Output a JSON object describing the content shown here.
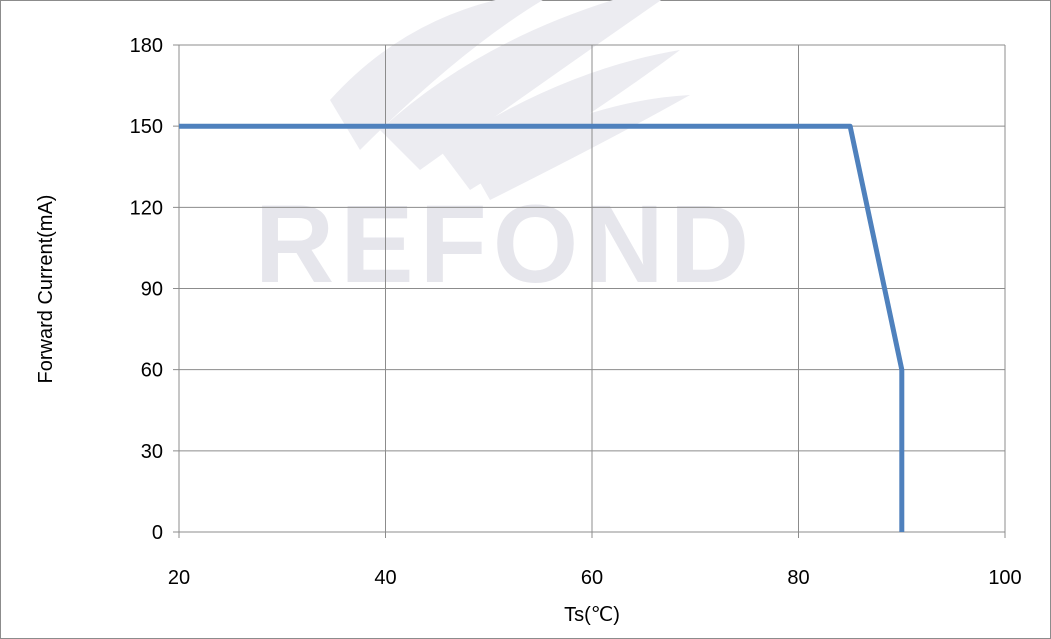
{
  "chart_data": {
    "type": "line",
    "title": "",
    "xlabel": "Ts(℃)",
    "ylabel": "Forward Current(mA)",
    "xlim": [
      20,
      100
    ],
    "ylim": [
      0,
      180
    ],
    "x_ticks": [
      "20",
      "40",
      "60",
      "80",
      "100"
    ],
    "y_ticks": [
      "0",
      "30",
      "60",
      "90",
      "120",
      "150",
      "180"
    ],
    "grid": true,
    "legend": "none",
    "series": [
      {
        "color": "#4f81bd",
        "points": [
          [
            20,
            150
          ],
          [
            85,
            150
          ],
          [
            90,
            60
          ],
          [
            90,
            0
          ]
        ]
      }
    ]
  },
  "watermark": {
    "text": "REFOND"
  },
  "colors": {
    "grid": "#8c8c8c",
    "series": "#4f81bd",
    "watermark": "#e8e8ed"
  }
}
